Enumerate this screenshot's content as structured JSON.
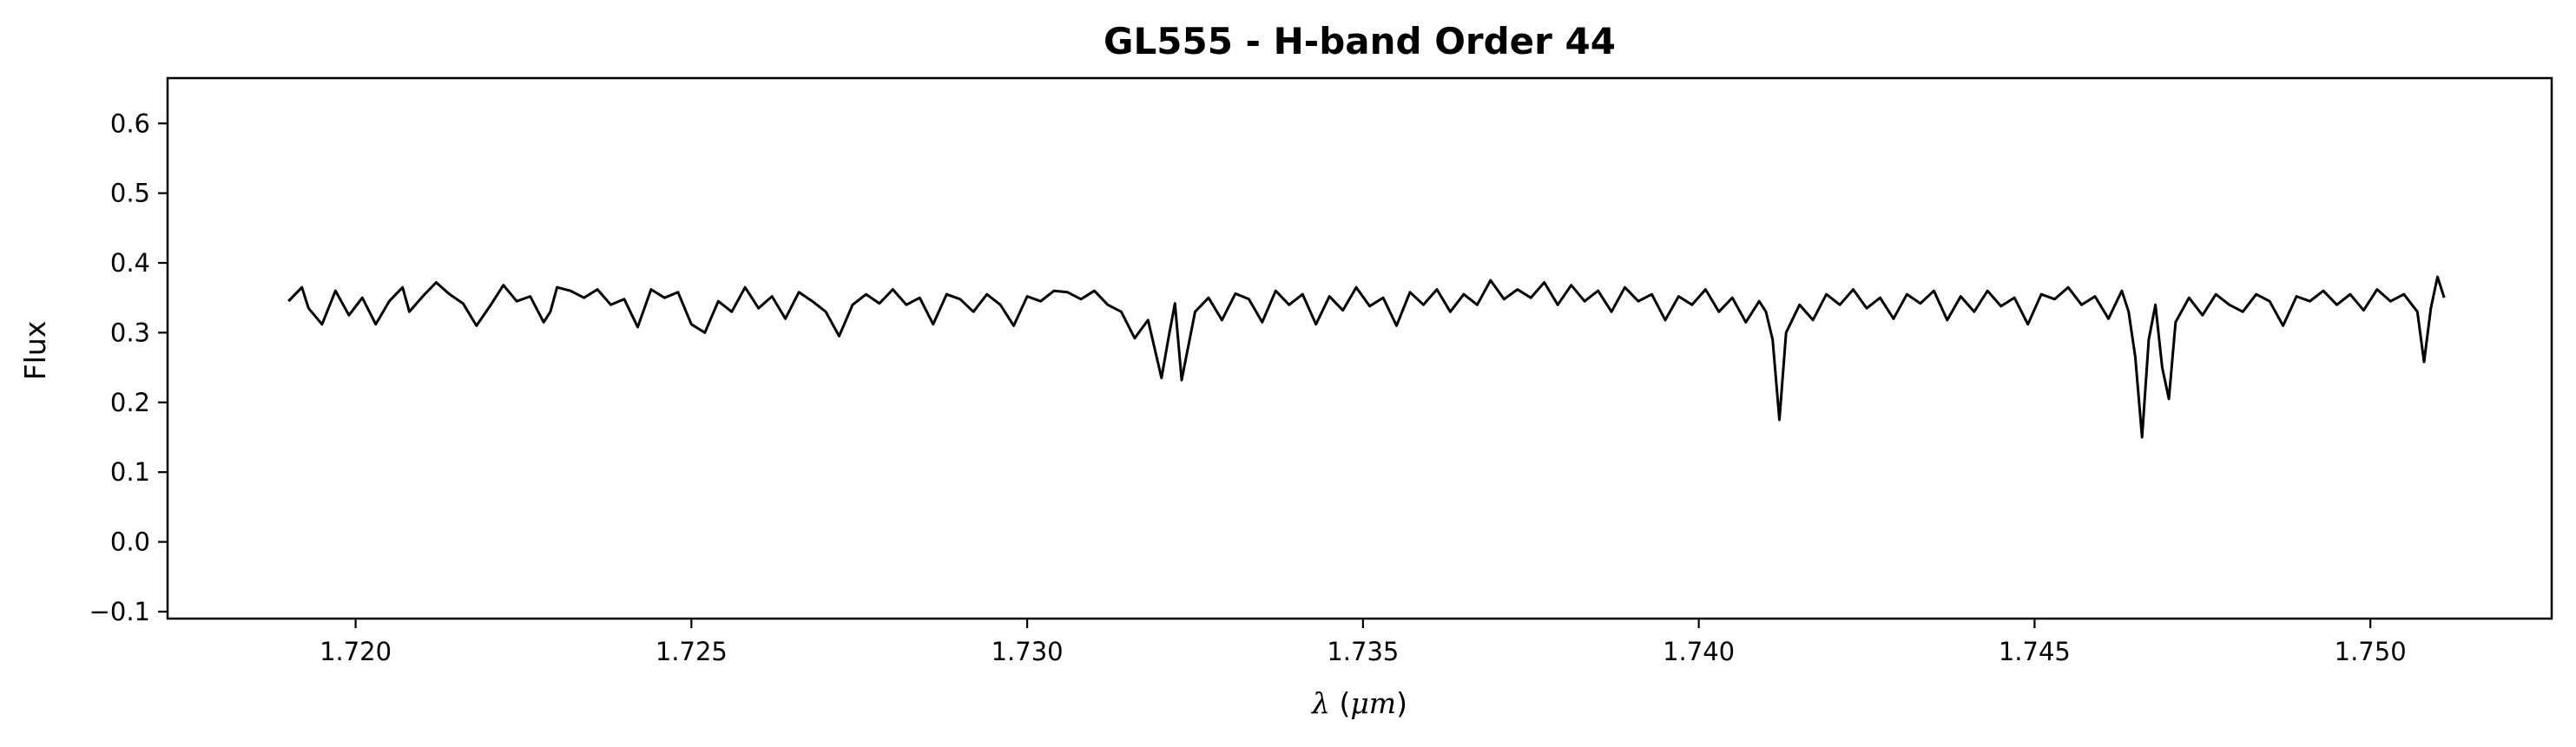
{
  "chart_data": {
    "type": "line",
    "title": "GL555 - H-band Order 44",
    "xlabel": "λ (μm)",
    "ylabel": "Flux",
    "xlim": [
      1.7172,
      1.7527
    ],
    "ylim": [
      -0.11,
      0.665
    ],
    "xticks": [
      "1.720",
      "1.725",
      "1.730",
      "1.735",
      "1.740",
      "1.745",
      "1.750"
    ],
    "xtick_values": [
      1.72,
      1.725,
      1.73,
      1.735,
      1.74,
      1.745,
      1.75
    ],
    "yticks": [
      "−0.1",
      "0.0",
      "0.1",
      "0.2",
      "0.3",
      "0.4",
      "0.5",
      "0.6"
    ],
    "ytick_values": [
      -0.1,
      0.0,
      0.1,
      0.2,
      0.3,
      0.4,
      0.5,
      0.6
    ],
    "grid": false,
    "line_color": "#000000",
    "series": [
      {
        "x_start": 1.719,
        "x_end": 1.7511,
        "points": [
          [
            1.719,
            0.345
          ],
          [
            1.7192,
            0.365
          ],
          [
            1.7193,
            0.335
          ],
          [
            1.7195,
            0.312
          ],
          [
            1.7197,
            0.36
          ],
          [
            1.7199,
            0.325
          ],
          [
            1.7201,
            0.35
          ],
          [
            1.7203,
            0.312
          ],
          [
            1.7205,
            0.345
          ],
          [
            1.7207,
            0.365
          ],
          [
            1.7208,
            0.33
          ],
          [
            1.721,
            0.352
          ],
          [
            1.7212,
            0.372
          ],
          [
            1.7214,
            0.355
          ],
          [
            1.7216,
            0.342
          ],
          [
            1.7218,
            0.31
          ],
          [
            1.722,
            0.338
          ],
          [
            1.7222,
            0.368
          ],
          [
            1.7224,
            0.345
          ],
          [
            1.7226,
            0.352
          ],
          [
            1.7228,
            0.315
          ],
          [
            1.7229,
            0.33
          ],
          [
            1.723,
            0.365
          ],
          [
            1.7232,
            0.36
          ],
          [
            1.7234,
            0.35
          ],
          [
            1.7236,
            0.362
          ],
          [
            1.7238,
            0.34
          ],
          [
            1.724,
            0.348
          ],
          [
            1.7242,
            0.308
          ],
          [
            1.7244,
            0.362
          ],
          [
            1.7246,
            0.35
          ],
          [
            1.7248,
            0.358
          ],
          [
            1.725,
            0.312
          ],
          [
            1.7252,
            0.3
          ],
          [
            1.7254,
            0.345
          ],
          [
            1.7256,
            0.33
          ],
          [
            1.7258,
            0.365
          ],
          [
            1.726,
            0.335
          ],
          [
            1.7262,
            0.352
          ],
          [
            1.7264,
            0.32
          ],
          [
            1.7266,
            0.358
          ],
          [
            1.7268,
            0.345
          ],
          [
            1.727,
            0.33
          ],
          [
            1.7272,
            0.295
          ],
          [
            1.7274,
            0.34
          ],
          [
            1.7276,
            0.355
          ],
          [
            1.7278,
            0.342
          ],
          [
            1.728,
            0.362
          ],
          [
            1.7282,
            0.34
          ],
          [
            1.7284,
            0.35
          ],
          [
            1.7286,
            0.312
          ],
          [
            1.7288,
            0.355
          ],
          [
            1.729,
            0.348
          ],
          [
            1.7292,
            0.33
          ],
          [
            1.7294,
            0.355
          ],
          [
            1.7296,
            0.34
          ],
          [
            1.7298,
            0.31
          ],
          [
            1.73,
            0.352
          ],
          [
            1.7302,
            0.345
          ],
          [
            1.7304,
            0.36
          ],
          [
            1.7306,
            0.358
          ],
          [
            1.7308,
            0.348
          ],
          [
            1.731,
            0.36
          ],
          [
            1.7312,
            0.34
          ],
          [
            1.7314,
            0.33
          ],
          [
            1.7316,
            0.292
          ],
          [
            1.7318,
            0.318
          ],
          [
            1.732,
            0.235
          ],
          [
            1.7321,
            0.29
          ],
          [
            1.7322,
            0.342
          ],
          [
            1.7323,
            0.232
          ],
          [
            1.7325,
            0.33
          ],
          [
            1.7327,
            0.35
          ],
          [
            1.7329,
            0.318
          ],
          [
            1.7331,
            0.356
          ],
          [
            1.7333,
            0.348
          ],
          [
            1.7335,
            0.315
          ],
          [
            1.7337,
            0.36
          ],
          [
            1.7339,
            0.34
          ],
          [
            1.7341,
            0.355
          ],
          [
            1.7343,
            0.312
          ],
          [
            1.7345,
            0.352
          ],
          [
            1.7347,
            0.332
          ],
          [
            1.7349,
            0.365
          ],
          [
            1.7351,
            0.338
          ],
          [
            1.7353,
            0.35
          ],
          [
            1.7355,
            0.31
          ],
          [
            1.7357,
            0.358
          ],
          [
            1.7359,
            0.34
          ],
          [
            1.7361,
            0.362
          ],
          [
            1.7363,
            0.33
          ],
          [
            1.7365,
            0.355
          ],
          [
            1.7367,
            0.34
          ],
          [
            1.7369,
            0.375
          ],
          [
            1.7371,
            0.348
          ],
          [
            1.7373,
            0.362
          ],
          [
            1.7375,
            0.35
          ],
          [
            1.7377,
            0.372
          ],
          [
            1.7379,
            0.34
          ],
          [
            1.7381,
            0.368
          ],
          [
            1.7383,
            0.345
          ],
          [
            1.7385,
            0.36
          ],
          [
            1.7387,
            0.33
          ],
          [
            1.7389,
            0.365
          ],
          [
            1.7391,
            0.345
          ],
          [
            1.7393,
            0.355
          ],
          [
            1.7395,
            0.318
          ],
          [
            1.7397,
            0.352
          ],
          [
            1.7399,
            0.34
          ],
          [
            1.7401,
            0.362
          ],
          [
            1.7403,
            0.33
          ],
          [
            1.7405,
            0.35
          ],
          [
            1.7407,
            0.315
          ],
          [
            1.7409,
            0.345
          ],
          [
            1.741,
            0.33
          ],
          [
            1.7411,
            0.29
          ],
          [
            1.7412,
            0.175
          ],
          [
            1.7413,
            0.3
          ],
          [
            1.7415,
            0.34
          ],
          [
            1.7417,
            0.318
          ],
          [
            1.7419,
            0.355
          ],
          [
            1.7421,
            0.34
          ],
          [
            1.7423,
            0.362
          ],
          [
            1.7425,
            0.335
          ],
          [
            1.7427,
            0.35
          ],
          [
            1.7429,
            0.32
          ],
          [
            1.7431,
            0.355
          ],
          [
            1.7433,
            0.342
          ],
          [
            1.7435,
            0.36
          ],
          [
            1.7437,
            0.318
          ],
          [
            1.7439,
            0.352
          ],
          [
            1.7441,
            0.33
          ],
          [
            1.7443,
            0.36
          ],
          [
            1.7445,
            0.338
          ],
          [
            1.7447,
            0.35
          ],
          [
            1.7449,
            0.312
          ],
          [
            1.7451,
            0.355
          ],
          [
            1.7453,
            0.348
          ],
          [
            1.7455,
            0.365
          ],
          [
            1.7457,
            0.34
          ],
          [
            1.7459,
            0.352
          ],
          [
            1.7461,
            0.32
          ],
          [
            1.7463,
            0.36
          ],
          [
            1.7464,
            0.33
          ],
          [
            1.7465,
            0.265
          ],
          [
            1.7466,
            0.15
          ],
          [
            1.7467,
            0.29
          ],
          [
            1.7468,
            0.34
          ],
          [
            1.7469,
            0.25
          ],
          [
            1.747,
            0.205
          ],
          [
            1.7471,
            0.315
          ],
          [
            1.7473,
            0.35
          ],
          [
            1.7475,
            0.325
          ],
          [
            1.7477,
            0.355
          ],
          [
            1.7479,
            0.34
          ],
          [
            1.7481,
            0.33
          ],
          [
            1.7483,
            0.355
          ],
          [
            1.7485,
            0.345
          ],
          [
            1.7487,
            0.31
          ],
          [
            1.7489,
            0.352
          ],
          [
            1.7491,
            0.345
          ],
          [
            1.7493,
            0.36
          ],
          [
            1.7495,
            0.34
          ],
          [
            1.7497,
            0.355
          ],
          [
            1.7499,
            0.332
          ],
          [
            1.7501,
            0.362
          ],
          [
            1.7503,
            0.345
          ],
          [
            1.7505,
            0.355
          ],
          [
            1.7507,
            0.33
          ],
          [
            1.7508,
            0.258
          ],
          [
            1.7509,
            0.335
          ],
          [
            1.751,
            0.38
          ],
          [
            1.7511,
            0.35
          ]
        ]
      }
    ]
  }
}
